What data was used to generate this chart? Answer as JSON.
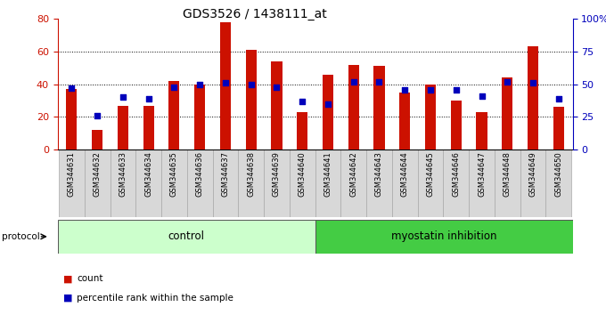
{
  "title": "GDS3526 / 1438111_at",
  "samples": [
    "GSM344631",
    "GSM344632",
    "GSM344633",
    "GSM344634",
    "GSM344635",
    "GSM344636",
    "GSM344637",
    "GSM344638",
    "GSM344639",
    "GSM344640",
    "GSM344641",
    "GSM344642",
    "GSM344643",
    "GSM344644",
    "GSM344645",
    "GSM344646",
    "GSM344647",
    "GSM344648",
    "GSM344649",
    "GSM344650"
  ],
  "counts": [
    37,
    12,
    27,
    27,
    42,
    40,
    78,
    61,
    54,
    23,
    46,
    52,
    51,
    35,
    40,
    30,
    23,
    44,
    63,
    26
  ],
  "percentiles": [
    47,
    26,
    40,
    39,
    48,
    50,
    51,
    50,
    48,
    37,
    35,
    52,
    52,
    46,
    46,
    46,
    41,
    52,
    51,
    39
  ],
  "bar_color": "#cc1100",
  "dot_color": "#0000bb",
  "n_control": 10,
  "control_label": "control",
  "treatment_label": "myostatin inhibition",
  "control_bg": "#ccffcc",
  "treatment_bg": "#44cc44",
  "protocol_label": "protocol",
  "legend_count": "count",
  "legend_pct": "percentile rank within the sample",
  "ylim_left": [
    0,
    80
  ],
  "ylim_right": [
    0,
    100
  ],
  "yticks_left": [
    0,
    20,
    40,
    60,
    80
  ],
  "yticks_right": [
    0,
    25,
    50,
    75,
    100
  ],
  "ytick_labels_right": [
    "0",
    "25",
    "50",
    "75",
    "100%"
  ],
  "grid_lines": [
    20,
    40,
    60
  ],
  "tick_bg": "#d8d8d8"
}
